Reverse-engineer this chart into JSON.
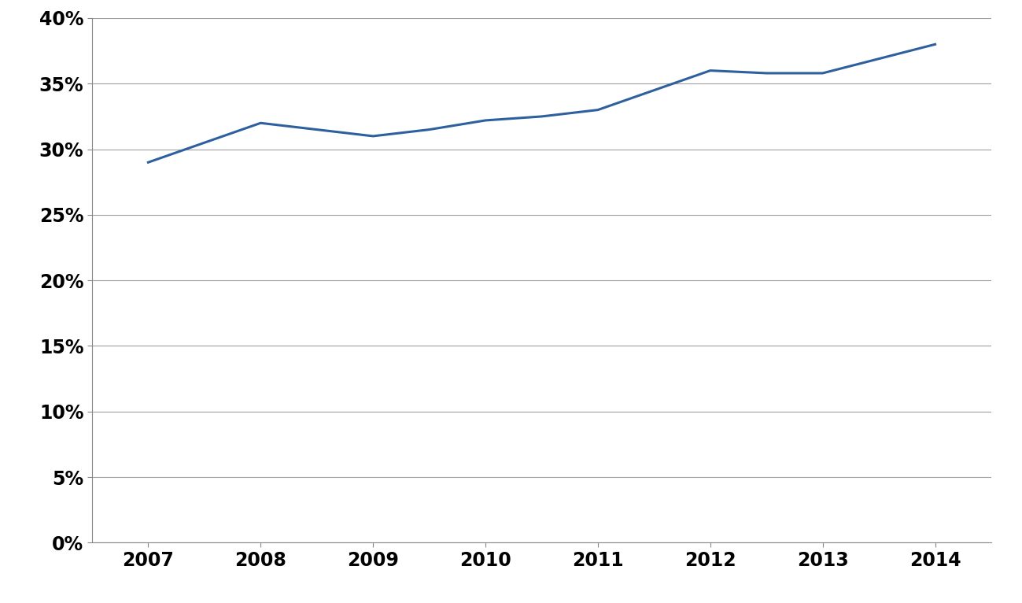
{
  "x_data": [
    2007,
    2007.5,
    2008,
    2008.5,
    2009,
    2009.5,
    2010,
    2010.5,
    2011,
    2011.5,
    2012,
    2012.5,
    2013,
    2014
  ],
  "y_data": [
    0.29,
    0.305,
    0.32,
    0.315,
    0.31,
    0.315,
    0.322,
    0.325,
    0.33,
    0.345,
    0.36,
    0.358,
    0.358,
    0.38
  ],
  "x_labels": [
    2007,
    2008,
    2009,
    2010,
    2011,
    2012,
    2013,
    2014
  ],
  "line_color": "#2E5F9E",
  "line_width": 2.2,
  "background_color": "#FFFFFF",
  "grid_color": "#A0A0A0",
  "ylim": [
    0,
    0.4
  ],
  "yticks": [
    0.0,
    0.05,
    0.1,
    0.15,
    0.2,
    0.25,
    0.3,
    0.35,
    0.4
  ],
  "ytick_labels": [
    "0%",
    "5%",
    "10%",
    "15%",
    "20%",
    "25%",
    "30%",
    "35%",
    "40%"
  ],
  "tick_fontsize": 17,
  "spine_color": "#888888",
  "xlim_left": 2006.5,
  "xlim_right": 2014.5
}
